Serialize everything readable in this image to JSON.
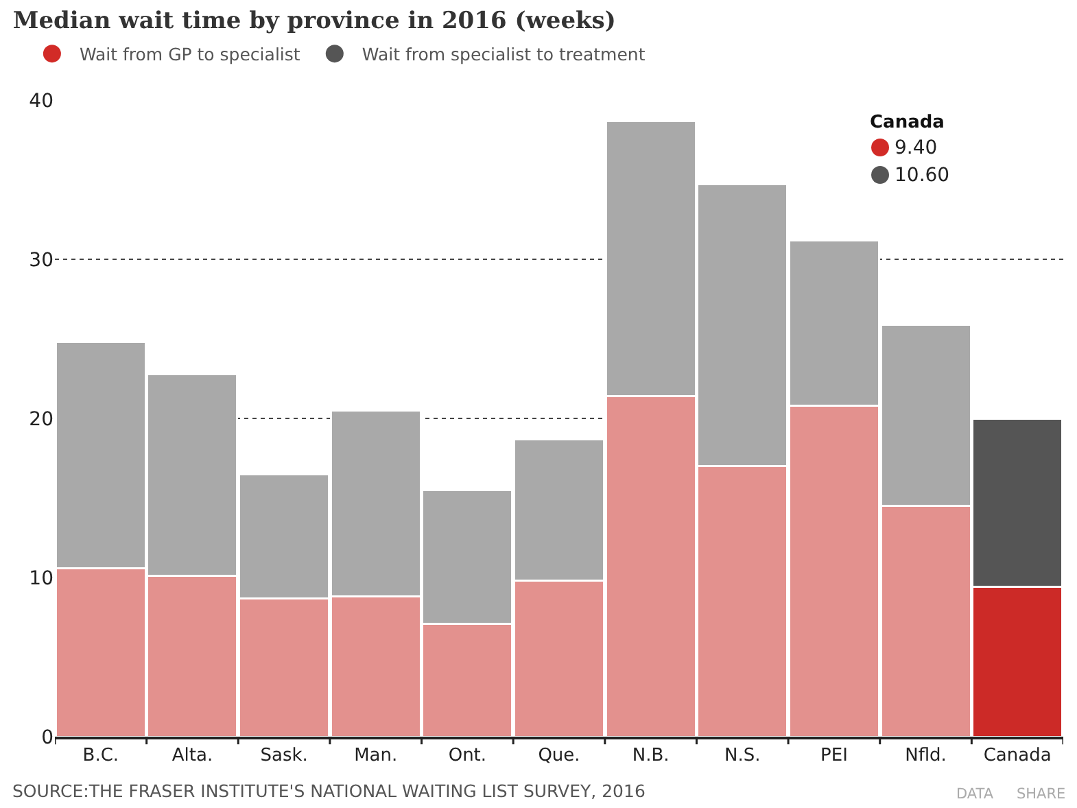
{
  "chart_data": {
    "type": "bar",
    "title": "Median wait time by province in 2016 (weeks)",
    "categories": [
      "B.C.",
      "Alta.",
      "Sask.",
      "Man.",
      "Ont.",
      "Que.",
      "N.B.",
      "N.S.",
      "PEI",
      "Nfld.",
      "Canada"
    ],
    "stacked": true,
    "series": [
      {
        "name": "Wait from GP to specialist",
        "color": "#d22b27",
        "colors": [
          "#e3918e",
          "#e3918e",
          "#e3918e",
          "#e3918e",
          "#e3918e",
          "#e3918e",
          "#e3918e",
          "#e3918e",
          "#e3918e",
          "#e3918e",
          "#cc2a27"
        ],
        "values": [
          10.6,
          10.1,
          8.7,
          8.8,
          7.1,
          9.8,
          21.4,
          17.0,
          20.8,
          14.5,
          9.4
        ]
      },
      {
        "name": "Wait from specialist to treatment",
        "color": "#555555",
        "colors": [
          "#a9a9a9",
          "#a9a9a9",
          "#a9a9a9",
          "#a9a9a9",
          "#a9a9a9",
          "#a9a9a9",
          "#a9a9a9",
          "#a9a9a9",
          "#a9a9a9",
          "#a9a9a9",
          "#555555"
        ],
        "values": [
          14.2,
          12.7,
          7.8,
          11.7,
          8.4,
          8.9,
          17.3,
          17.7,
          10.4,
          11.4,
          10.6
        ]
      }
    ],
    "ylim": [
      0,
      40
    ],
    "yticks": [
      0,
      10,
      20,
      30,
      40
    ],
    "grid": "y",
    "legend": "top left",
    "annotations": [
      "Canada",
      "9.40",
      "10.60",
      "SOURCE:THE FRASER INSTITUTE'S NATIONAL WAITING LIST SURVEY, 2016",
      "DATA",
      "SHARE"
    ]
  }
}
